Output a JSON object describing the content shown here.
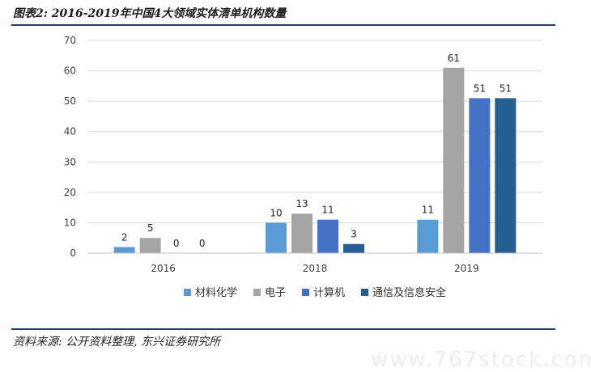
{
  "header": {
    "title": "图表2: 2016-2019年中国4大领域实体清单机构数量"
  },
  "footer": {
    "source": "资料来源: 公开资料整理, 东兴证券研究所"
  },
  "watermark": "www.767stock.com",
  "chart_data": {
    "type": "bar",
    "title": "",
    "xlabel": "",
    "ylabel": "",
    "categories": [
      "2016",
      "2018",
      "2019"
    ],
    "ylim": [
      0,
      70
    ],
    "yticks": [
      0,
      10,
      20,
      30,
      40,
      50,
      60,
      70
    ],
    "grid": true,
    "legend": "bottom",
    "series": [
      {
        "name": "材料化学",
        "color": "#5b9bd5",
        "values": [
          2,
          10,
          11
        ]
      },
      {
        "name": "电子",
        "color": "#a5a5a5",
        "values": [
          5,
          13,
          61
        ]
      },
      {
        "name": "计算机",
        "color": "#4472c4",
        "values": [
          0,
          11,
          51
        ]
      },
      {
        "name": "通信及信息安全",
        "color": "#255e91",
        "values": [
          0,
          3,
          51
        ]
      }
    ]
  }
}
